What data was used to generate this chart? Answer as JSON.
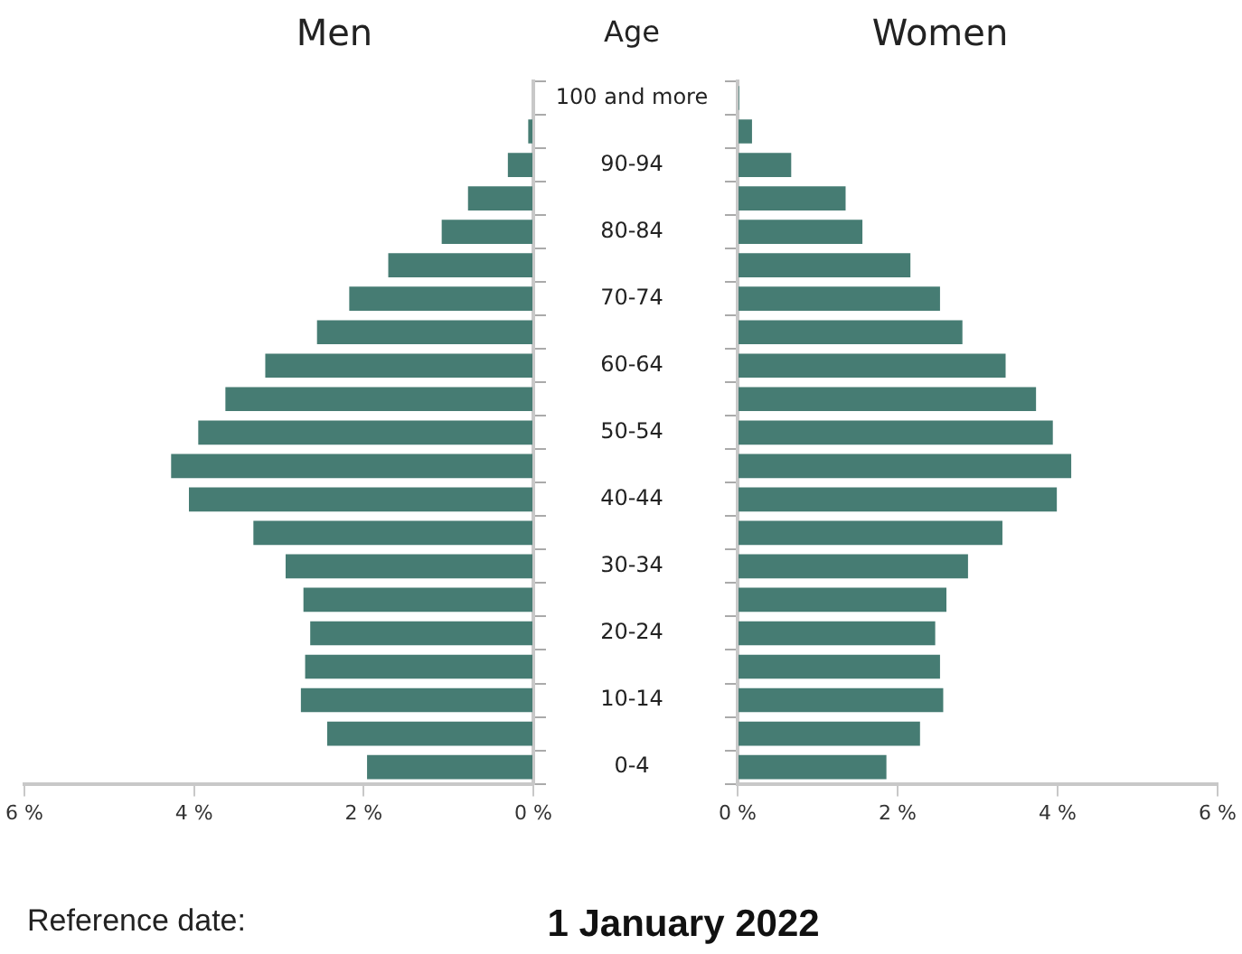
{
  "chart_data": [
    {
      "type": "bar",
      "orientation": "horizontal",
      "title": "Men",
      "ylabel": "Age",
      "categories": [
        "100 and more",
        null,
        "90-94",
        null,
        "80-84",
        null,
        "70-74",
        null,
        "60-64",
        null,
        "50-54",
        null,
        "40-44",
        null,
        "30-34",
        null,
        "20-24",
        null,
        "10-14",
        null,
        "0-4"
      ],
      "values": [
        0,
        0.06,
        0.3,
        0.77,
        1.08,
        1.71,
        2.17,
        2.55,
        3.16,
        3.63,
        3.95,
        4.27,
        4.06,
        3.3,
        2.92,
        2.71,
        2.63,
        2.69,
        2.74,
        2.43,
        1.96
      ],
      "color": "#467c73",
      "xlim": [
        6,
        0
      ],
      "xticks": [
        {
          "value": 6,
          "label": "6 %"
        },
        {
          "value": 4,
          "label": "4 %"
        },
        {
          "value": 2,
          "label": "2 %"
        },
        {
          "value": 0,
          "label": "0 %"
        }
      ],
      "grid": false,
      "legend": false,
      "annotations": [
        "Reference date:",
        "1 January 2022"
      ]
    },
    {
      "type": "bar",
      "orientation": "horizontal",
      "title": "Women",
      "categories": [
        null,
        null,
        null,
        null,
        null,
        null,
        null,
        null,
        null,
        null,
        null,
        null,
        null,
        null,
        null,
        null,
        null,
        null,
        null,
        null,
        null
      ],
      "values": [
        0.02,
        0.18,
        0.67,
        1.35,
        1.56,
        2.16,
        2.53,
        2.81,
        3.35,
        3.73,
        3.94,
        4.17,
        3.99,
        3.31,
        2.88,
        2.61,
        2.47,
        2.53,
        2.57,
        2.28,
        1.86
      ],
      "color": "#467c73",
      "xlim": [
        0,
        6
      ],
      "xticks": [
        {
          "value": 0,
          "label": "0 %"
        },
        {
          "value": 2,
          "label": "2 %"
        },
        {
          "value": 4,
          "label": "4 %"
        },
        {
          "value": 6,
          "label": "6 %"
        }
      ],
      "grid": false,
      "legend": false,
      "tick_labels": "x"
    }
  ]
}
